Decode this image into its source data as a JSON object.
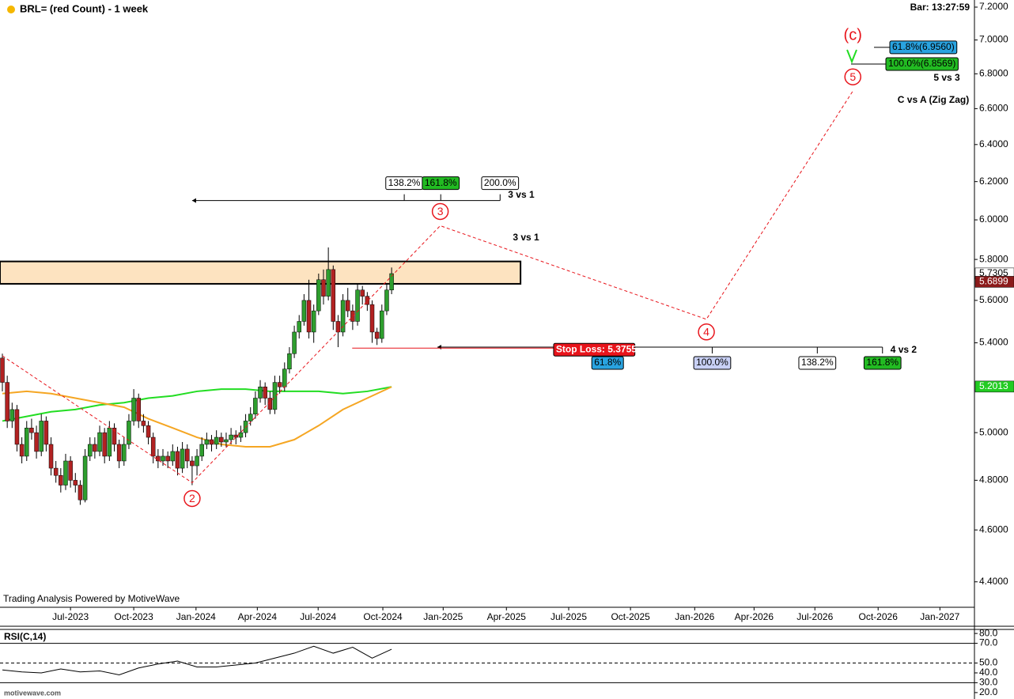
{
  "chart_data": {
    "type": "candlestick",
    "title": "BRL= (red Count) - 1 week",
    "bar_time": "Bar: 13:27:59",
    "watermark": "Trading Analysis Powered by MotiveWave",
    "footer": "motivewave.com",
    "log_scale": true,
    "xlim": [
      -0.49,
      199.8
    ],
    "ylim": [
      4.305,
      7.244
    ],
    "yticks": [
      {
        "value": 7.2,
        "label": "7.2000"
      },
      {
        "value": 7.0,
        "label": "7.0000"
      },
      {
        "value": 6.8,
        "label": "6.8000"
      },
      {
        "value": 6.6,
        "label": "6.6000"
      },
      {
        "value": 6.4,
        "label": "6.4000"
      },
      {
        "value": 6.2,
        "label": "6.2000"
      },
      {
        "value": 6.0,
        "label": "6.0000"
      },
      {
        "value": 5.8,
        "label": "5.8000"
      },
      {
        "value": 5.6,
        "label": "5.6000"
      },
      {
        "value": 5.4,
        "label": "5.4000"
      },
      {
        "value": 5.0,
        "label": "5.0000"
      },
      {
        "value": 4.8,
        "label": "4.8000"
      },
      {
        "value": 4.6,
        "label": "4.6000"
      },
      {
        "value": 4.4,
        "label": "4.4000"
      }
    ],
    "xticks": [
      {
        "value": 14.0,
        "label": "Jul-2023"
      },
      {
        "value": 27.0,
        "label": "Oct-2023"
      },
      {
        "value": 39.8,
        "label": "Jan-2024"
      },
      {
        "value": 52.4,
        "label": "Apr-2024"
      },
      {
        "value": 64.9,
        "label": "Jul-2024"
      },
      {
        "value": 78.2,
        "label": "Oct-2024"
      },
      {
        "value": 90.6,
        "label": "Jan-2025"
      },
      {
        "value": 103.6,
        "label": "Apr-2025"
      },
      {
        "value": 116.4,
        "label": "Jul-2025"
      },
      {
        "value": 129.1,
        "label": "Oct-2025"
      },
      {
        "value": 142.3,
        "label": "Jan-2026"
      },
      {
        "value": 154.5,
        "label": "Apr-2026"
      },
      {
        "value": 167.0,
        "label": "Jul-2026"
      },
      {
        "value": 180.0,
        "label": "Oct-2026"
      },
      {
        "value": 192.7,
        "label": "Jan-2027"
      }
    ],
    "up_color": "#2e9e2e",
    "down_color": "#b22222",
    "candles": [
      [
        5.33,
        5.35,
        5.18,
        5.22
      ],
      [
        5.22,
        5.25,
        5.02,
        5.05
      ],
      [
        5.05,
        5.13,
        5.02,
        5.1
      ],
      [
        5.1,
        5.12,
        4.92,
        4.95
      ],
      [
        4.95,
        4.98,
        4.87,
        4.9
      ],
      [
        4.9,
        5.05,
        4.88,
        5.02
      ],
      [
        5.02,
        5.06,
        4.97,
        5.0
      ],
      [
        5.0,
        5.03,
        4.89,
        4.92
      ],
      [
        4.92,
        5.08,
        4.9,
        5.05
      ],
      [
        5.05,
        5.07,
        4.92,
        4.95
      ],
      [
        4.95,
        4.98,
        4.82,
        4.85
      ],
      [
        4.85,
        4.88,
        4.79,
        4.82
      ],
      [
        4.82,
        4.85,
        4.75,
        4.78
      ],
      [
        4.78,
        4.91,
        4.76,
        4.88
      ],
      [
        4.88,
        4.9,
        4.77,
        4.8
      ],
      [
        4.8,
        4.83,
        4.75,
        4.78
      ],
      [
        4.78,
        4.8,
        4.7,
        4.72
      ],
      [
        4.72,
        4.93,
        4.71,
        4.9
      ],
      [
        4.9,
        4.98,
        4.88,
        4.95
      ],
      [
        4.95,
        4.98,
        4.89,
        4.92
      ],
      [
        4.92,
        5.03,
        4.9,
        5.0
      ],
      [
        5.0,
        5.02,
        4.87,
        4.9
      ],
      [
        4.9,
        5.05,
        4.88,
        5.02
      ],
      [
        5.02,
        5.04,
        4.92,
        4.95
      ],
      [
        4.95,
        4.97,
        4.85,
        4.88
      ],
      [
        4.88,
        4.98,
        4.86,
        4.95
      ],
      [
        4.95,
        5.08,
        4.93,
        5.05
      ],
      [
        5.05,
        5.19,
        5.03,
        5.15
      ],
      [
        5.15,
        5.17,
        5.02,
        5.05
      ],
      [
        5.05,
        5.08,
        5.0,
        5.03
      ],
      [
        5.03,
        5.05,
        4.95,
        4.98
      ],
      [
        4.98,
        5.0,
        4.87,
        4.9
      ],
      [
        4.9,
        4.93,
        4.85,
        4.88
      ],
      [
        4.88,
        4.93,
        4.86,
        4.9
      ],
      [
        4.9,
        4.92,
        4.85,
        4.88
      ],
      [
        4.88,
        4.95,
        4.86,
        4.92
      ],
      [
        4.92,
        4.94,
        4.82,
        4.85
      ],
      [
        4.85,
        4.96,
        4.83,
        4.93
      ],
      [
        4.93,
        4.95,
        4.85,
        4.88
      ],
      [
        4.88,
        4.9,
        4.78,
        4.86
      ],
      [
        4.86,
        4.93,
        4.82,
        4.9
      ],
      [
        4.9,
        4.98,
        4.88,
        4.95
      ],
      [
        4.95,
        5.0,
        4.93,
        4.97
      ],
      [
        4.97,
        4.99,
        4.92,
        4.95
      ],
      [
        4.95,
        5.01,
        4.93,
        4.98
      ],
      [
        4.98,
        5.0,
        4.94,
        4.96
      ],
      [
        4.96,
        5.0,
        4.94,
        4.97
      ],
      [
        4.97,
        5.02,
        4.95,
        4.99
      ],
      [
        4.99,
        5.01,
        4.95,
        4.98
      ],
      [
        4.98,
        5.03,
        4.96,
        5.0
      ],
      [
        5.0,
        5.08,
        4.98,
        5.05
      ],
      [
        5.05,
        5.11,
        5.03,
        5.08
      ],
      [
        5.08,
        5.18,
        5.06,
        5.15
      ],
      [
        5.15,
        5.23,
        5.13,
        5.2
      ],
      [
        5.2,
        5.22,
        5.12,
        5.15
      ],
      [
        5.15,
        5.18,
        5.08,
        5.1
      ],
      [
        5.1,
        5.25,
        5.08,
        5.22
      ],
      [
        5.22,
        5.25,
        5.17,
        5.2
      ],
      [
        5.2,
        5.31,
        5.18,
        5.28
      ],
      [
        5.28,
        5.38,
        5.26,
        5.35
      ],
      [
        5.35,
        5.48,
        5.33,
        5.45
      ],
      [
        5.45,
        5.53,
        5.42,
        5.5
      ],
      [
        5.5,
        5.63,
        5.48,
        5.6
      ],
      [
        5.6,
        5.7,
        5.42,
        5.45
      ],
      [
        5.45,
        5.58,
        5.4,
        5.55
      ],
      [
        5.55,
        5.73,
        5.53,
        5.7
      ],
      [
        5.7,
        5.75,
        5.58,
        5.62
      ],
      [
        5.62,
        5.86,
        5.6,
        5.75
      ],
      [
        5.75,
        5.77,
        5.46,
        5.5
      ],
      [
        5.5,
        5.53,
        5.38,
        5.45
      ],
      [
        5.45,
        5.63,
        5.43,
        5.6
      ],
      [
        5.6,
        5.66,
        5.52,
        5.55
      ],
      [
        5.55,
        5.58,
        5.46,
        5.5
      ],
      [
        5.5,
        5.68,
        5.48,
        5.65
      ],
      [
        5.65,
        5.67,
        5.58,
        5.62
      ],
      [
        5.62,
        5.64,
        5.55,
        5.58
      ],
      [
        5.58,
        5.6,
        5.4,
        5.45
      ],
      [
        5.45,
        5.47,
        5.39,
        5.42
      ],
      [
        5.42,
        5.58,
        5.4,
        5.55
      ],
      [
        5.55,
        5.68,
        5.53,
        5.65
      ],
      [
        5.65,
        5.76,
        5.63,
        5.73
      ]
    ],
    "moving_averages": [
      {
        "color": "#22dd22",
        "x": [
          0,
          5,
          10,
          15,
          20,
          25,
          30,
          35,
          40,
          45,
          50,
          55,
          60,
          65,
          70,
          75,
          80
        ],
        "values": [
          5.05,
          5.07,
          5.09,
          5.1,
          5.12,
          5.13,
          5.15,
          5.16,
          5.18,
          5.19,
          5.19,
          5.18,
          5.18,
          5.18,
          5.17,
          5.18,
          5.2
        ]
      },
      {
        "color": "#f5a623",
        "x": [
          0,
          5,
          10,
          15,
          20,
          25,
          30,
          35,
          40,
          45,
          50,
          55,
          60,
          65,
          70,
          75,
          80
        ],
        "values": [
          5.17,
          5.18,
          5.17,
          5.15,
          5.13,
          5.11,
          5.06,
          5.02,
          4.98,
          4.95,
          4.94,
          4.94,
          4.97,
          5.03,
          5.1,
          5.15,
          5.2
        ]
      }
    ],
    "price_markers": [
      {
        "value": 5.7305,
        "bg": "#ffffff",
        "fg": "#000000"
      },
      {
        "value": 5.6899,
        "bg": "#8b1a1a",
        "fg": "#ffffff"
      },
      {
        "value": 5.2013,
        "bg": "#22cc22",
        "fg": "#ffffff"
      }
    ],
    "resistance_zone": {
      "x": [
        -0.49,
        106.5
      ],
      "y": [
        5.68,
        5.79
      ],
      "color": "#fde3c0"
    },
    "stop_loss": {
      "label": "Stop Loss: 5.3755",
      "value": 5.3755,
      "x": [
        71.9,
        113.3
      ],
      "color": "#e8141b"
    },
    "wave_path": {
      "color": "#e8141b",
      "x": [
        0,
        39,
        90,
        144.7,
        174.8
      ],
      "y": [
        5.34,
        4.79,
        5.97,
        5.51,
        6.7
      ]
    },
    "wave_labels": [
      "2",
      "3",
      "4",
      "5",
      "(c)"
    ],
    "fib_upper": {
      "value": 6.1,
      "x": [
        39.0,
        102.3
      ],
      "labels": [
        "138.2%",
        "161.8%",
        "200.0%"
      ],
      "positions": [
        82.6,
        90.1,
        102.3
      ],
      "colors": [
        "#ffffff",
        "#22bb22",
        "#ffffff"
      ],
      "note": "3 vs 1"
    },
    "fib_lower": {
      "value": 5.38,
      "x": [
        89.4,
        180.9
      ],
      "labels": [
        "61.8%",
        "100.0%",
        "138.2%",
        "161.8%"
      ],
      "positions": [
        124.4,
        145.9,
        167.5,
        180.9
      ],
      "colors": [
        "#29a3e0",
        "#c8d0f5",
        "#ffffff",
        "#22bb22"
      ],
      "note": "4 vs 2"
    },
    "fib_target": {
      "values": [
        6.956,
        6.8569
      ],
      "labels": [
        "61.8%(6.9560)",
        "100.0%(6.8569)"
      ],
      "colors": [
        "#29a3e0",
        "#22bb22"
      ]
    },
    "notes": [
      "3 vs 1",
      "5 vs 3",
      "C vs A (Zig Zag)"
    ],
    "rsi": {
      "label": "RSI(C,14)",
      "ylim": [
        15.1,
        84.1
      ],
      "yticks": [
        {
          "value": 80,
          "label": "80.0"
        },
        {
          "value": 70,
          "label": "70.0"
        },
        {
          "value": 50,
          "label": "50.0"
        },
        {
          "value": 40,
          "label": "40.0"
        },
        {
          "value": 30,
          "label": "30.0"
        },
        {
          "value": 20,
          "label": "20.0"
        }
      ],
      "levels": [
        70,
        50,
        30
      ],
      "x": [
        0,
        4,
        8,
        12,
        16,
        20,
        24,
        28,
        32,
        36,
        40,
        44,
        48,
        52,
        56,
        60,
        64,
        68,
        72,
        76,
        80
      ],
      "values": [
        43,
        41,
        40,
        44,
        41,
        42,
        38,
        45,
        49,
        52,
        46,
        46,
        48,
        50,
        55,
        60,
        67,
        60,
        66,
        55,
        64
      ]
    }
  }
}
